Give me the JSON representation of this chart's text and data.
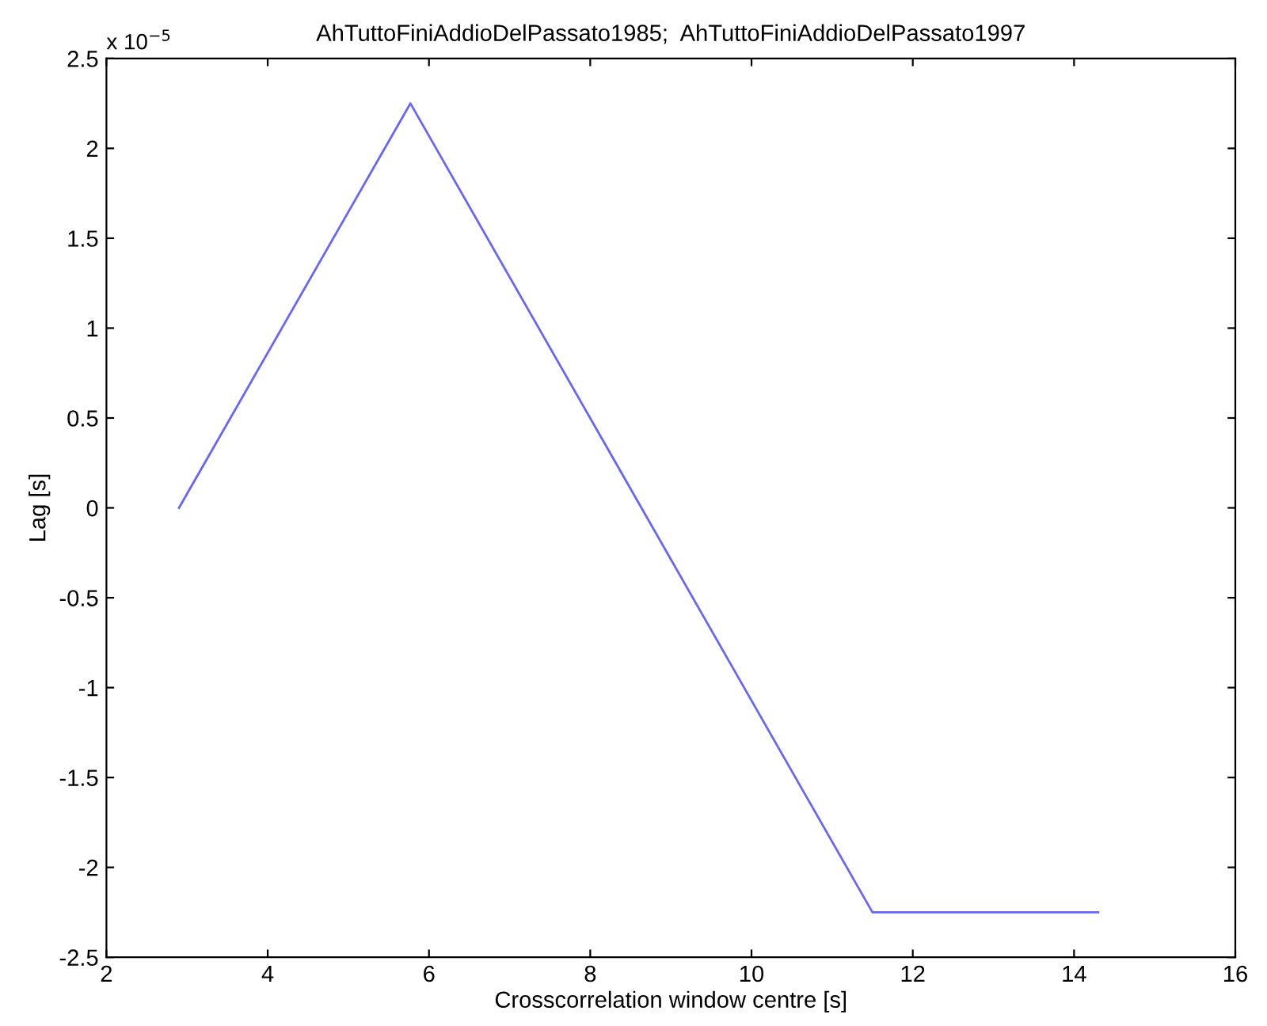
{
  "chart_data": {
    "type": "line",
    "title": "AhTuttoFiniAddioDelPassato1985;  AhTuttoFiniAddioDelPassato1997",
    "xlabel": "Crosscorrelation window centre [s]",
    "ylabel": "Lag [s]",
    "annotations": [
      "x 10$^{−5}$"
    ],
    "x": [
      2.9,
      5.77,
      11.5,
      14.3
    ],
    "series": [
      {
        "color": "#6666ff",
        "values": [
          0,
          2.25,
          -2.25,
          -2.25
        ]
      }
    ],
    "xlim": [
      2,
      16
    ],
    "xticks": [
      2,
      4,
      6,
      8,
      10,
      12,
      14,
      16
    ],
    "ylim": [
      -2.5,
      2.5
    ],
    "yticks": [
      -2.5,
      -2,
      -1.5,
      -1,
      -0.5,
      0,
      0.5,
      1,
      1.5,
      2,
      2.5
    ],
    "grid": false,
    "legend": false,
    "marker": "none",
    "line_style": "solid"
  }
}
